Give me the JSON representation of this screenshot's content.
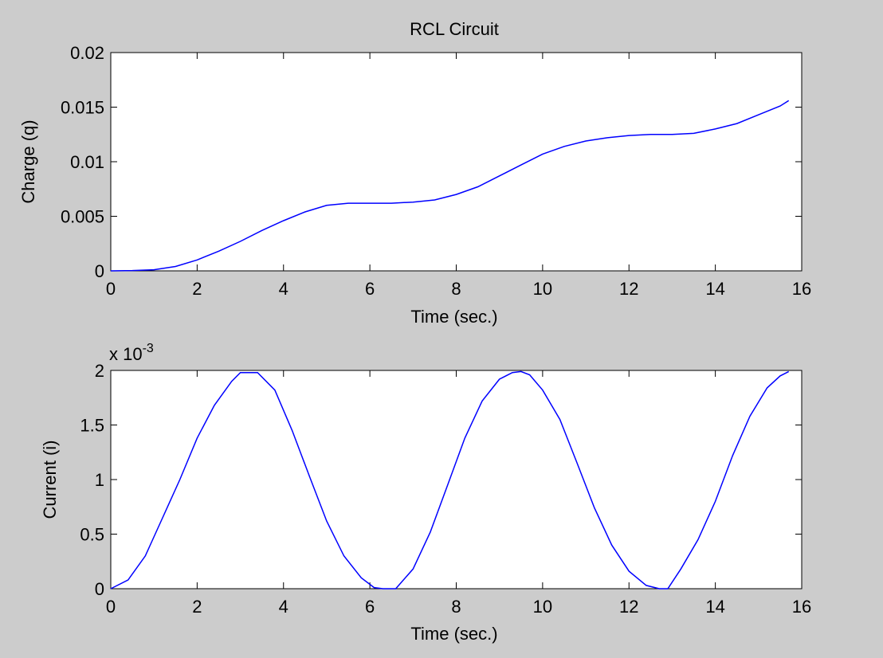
{
  "figure": {
    "background": "#cccccc",
    "axes_background": "#ffffff",
    "line_color": "#0000ff"
  },
  "chart_data": [
    {
      "type": "line",
      "title": "RCL Circuit",
      "xlabel": "Time (sec.)",
      "ylabel": "Charge (q)",
      "xlim": [
        0,
        16
      ],
      "ylim": [
        0,
        0.02
      ],
      "xticks": [
        0,
        2,
        4,
        6,
        8,
        10,
        12,
        14,
        16
      ],
      "yticks": [
        0,
        0.005,
        0.01,
        0.015,
        0.02
      ],
      "xtick_labels": [
        "0",
        "2",
        "4",
        "6",
        "8",
        "10",
        "12",
        "14",
        "16"
      ],
      "ytick_labels": [
        "0",
        "0.005",
        "0.01",
        "0.015",
        "0.02"
      ],
      "exponent": null,
      "grid": false,
      "series": [
        {
          "x": [
            0,
            0.5,
            1,
            1.5,
            2,
            2.5,
            3,
            3.5,
            4,
            4.5,
            5,
            5.5,
            6,
            6.5,
            7,
            7.5,
            8,
            8.5,
            9,
            9.5,
            10,
            10.5,
            11,
            11.5,
            12,
            12.5,
            13,
            13.5,
            14,
            14.5,
            15,
            15.5,
            15.7
          ],
          "y": [
            0,
            3e-05,
            0.0001,
            0.0004,
            0.001,
            0.0018,
            0.0027,
            0.0037,
            0.0046,
            0.0054,
            0.006,
            0.0062,
            0.0062,
            0.0062,
            0.0063,
            0.0065,
            0.007,
            0.0077,
            0.0087,
            0.0097,
            0.0107,
            0.0114,
            0.0119,
            0.0122,
            0.0124,
            0.0125,
            0.0125,
            0.0126,
            0.013,
            0.0135,
            0.0143,
            0.0151,
            0.0156
          ]
        }
      ]
    },
    {
      "type": "line",
      "title": "",
      "xlabel": "Time (sec.)",
      "ylabel": "Current (i)",
      "xlim": [
        0,
        16
      ],
      "ylim": [
        0,
        2
      ],
      "xticks": [
        0,
        2,
        4,
        6,
        8,
        10,
        12,
        14,
        16
      ],
      "yticks": [
        0,
        0.5,
        1,
        1.5,
        2
      ],
      "xtick_labels": [
        "0",
        "2",
        "4",
        "6",
        "8",
        "10",
        "12",
        "14",
        "16"
      ],
      "ytick_labels": [
        "0",
        "0.5",
        "1",
        "1.5",
        "2"
      ],
      "exponent": {
        "base": "x 10",
        "power": "-3"
      },
      "grid": false,
      "series": [
        {
          "x": [
            0,
            0.4,
            0.8,
            1.2,
            1.6,
            2.0,
            2.4,
            2.8,
            3.0,
            3.4,
            3.8,
            4.2,
            4.6,
            5.0,
            5.4,
            5.8,
            6.1,
            6.3,
            6.6,
            7.0,
            7.4,
            7.8,
            8.2,
            8.6,
            9.0,
            9.3,
            9.5,
            9.7,
            10.0,
            10.4,
            10.8,
            11.2,
            11.6,
            12.0,
            12.4,
            12.7,
            12.9,
            13.2,
            13.6,
            14.0,
            14.4,
            14.8,
            15.2,
            15.5,
            15.7
          ],
          "y": [
            0,
            0.08,
            0.3,
            0.65,
            1.0,
            1.38,
            1.68,
            1.9,
            1.98,
            1.98,
            1.82,
            1.45,
            1.03,
            0.62,
            0.3,
            0.1,
            0.01,
            0.0,
            0.0,
            0.18,
            0.52,
            0.95,
            1.38,
            1.72,
            1.92,
            1.98,
            1.99,
            1.96,
            1.82,
            1.55,
            1.15,
            0.74,
            0.4,
            0.16,
            0.03,
            0.0,
            0.0,
            0.18,
            0.45,
            0.8,
            1.22,
            1.58,
            1.84,
            1.95,
            1.99
          ]
        }
      ]
    }
  ]
}
